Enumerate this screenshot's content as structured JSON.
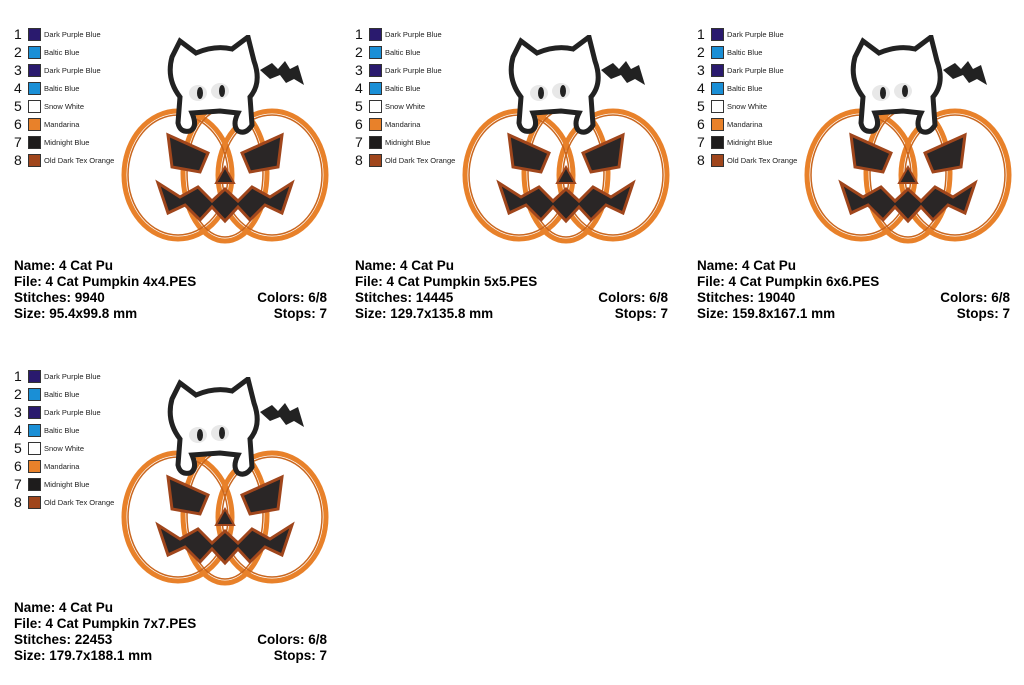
{
  "palette": [
    {
      "num": "1",
      "name": "Dark Purple Blue",
      "color": "#2a1a6e"
    },
    {
      "num": "2",
      "name": "Baltic Blue",
      "color": "#1a8fd6"
    },
    {
      "num": "3",
      "name": "Dark Purple Blue",
      "color": "#2a1a6e"
    },
    {
      "num": "4",
      "name": "Baltic Blue",
      "color": "#1a8fd6"
    },
    {
      "num": "5",
      "name": "Snow White",
      "color": "#ffffff"
    },
    {
      "num": "6",
      "name": "Mandarina",
      "color": "#e8812a"
    },
    {
      "num": "7",
      "name": "Midnight Blue",
      "color": "#1e1c1c"
    },
    {
      "num": "8",
      "name": "Old Dark Tex Orange",
      "color": "#a0461c"
    }
  ],
  "designs": [
    {
      "name": "Name: 4 Cat Pu",
      "file": "File: 4 Cat Pumpkin 4x4.PES",
      "stitches": "Stitches: 9940",
      "colors": "Colors: 6/8",
      "size": "Size: 95.4x99.8 mm",
      "stops": "Stops: 7"
    },
    {
      "name": "Name: 4 Cat Pu",
      "file": "File: 4 Cat Pumpkin 5x5.PES",
      "stitches": "Stitches: 14445",
      "colors": "Colors: 6/8",
      "size": "Size: 129.7x135.8 mm",
      "stops": "Stops: 7"
    },
    {
      "name": "Name: 4 Cat Pu",
      "file": "File: 4 Cat Pumpkin 6x6.PES",
      "stitches": "Stitches: 19040",
      "colors": "Colors: 6/8",
      "size": "Size: 159.8x167.1 mm",
      "stops": "Stops: 7"
    },
    {
      "name": "Name: 4 Cat Pu",
      "file": "File: 4 Cat Pumpkin 7x7.PES",
      "stitches": "Stitches: 22453",
      "colors": "Colors: 6/8",
      "size": "Size: 179.7x188.1 mm",
      "stops": "Stops: 7"
    }
  ]
}
